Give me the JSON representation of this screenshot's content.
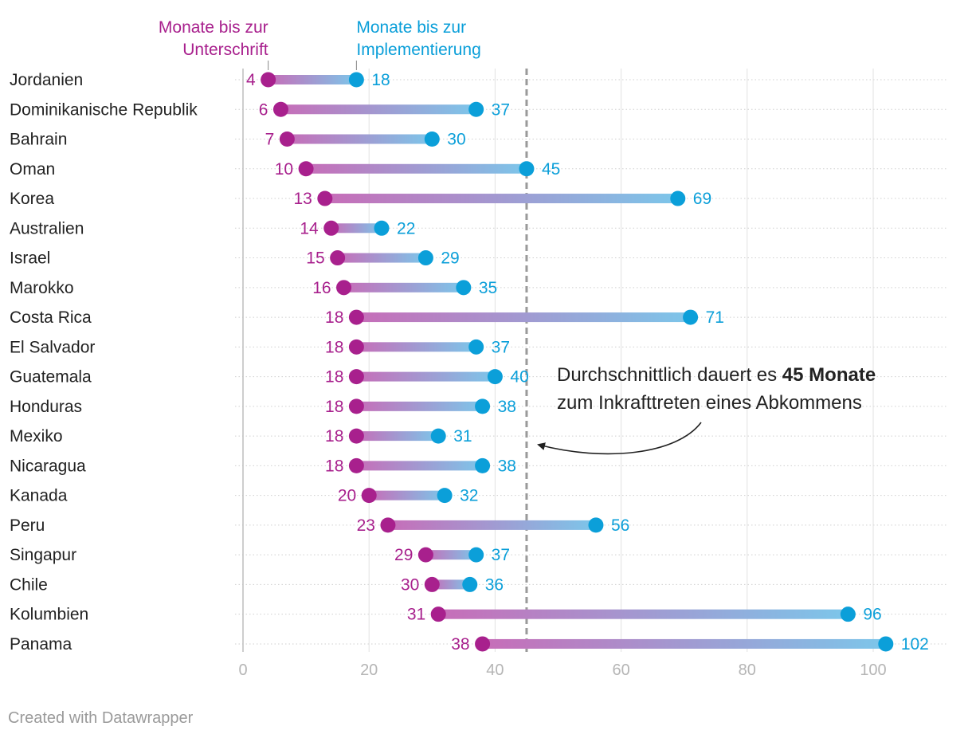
{
  "colors": {
    "signature": "#a8208d",
    "implementation": "#0b9fd9",
    "average_line": "#9a9a9a",
    "text": "#222222",
    "axis_text": "#b5b5b5",
    "grid": "#e2e2e2"
  },
  "chart_data": {
    "type": "dumbbell",
    "series": [
      {
        "name": "Monate bis zur Unterschrift",
        "label_lines": [
          "Monate bis zur",
          "Unterschrift"
        ]
      },
      {
        "name": "Monate bis zur Implementierung",
        "label_lines": [
          "Monate bis zur",
          "Implementierung"
        ]
      }
    ],
    "rows": [
      {
        "country": "Jordanien",
        "signature": 4,
        "implementation": 18
      },
      {
        "country": "Dominikanische Republik",
        "signature": 6,
        "implementation": 37
      },
      {
        "country": "Bahrain",
        "signature": 7,
        "implementation": 30
      },
      {
        "country": "Oman",
        "signature": 10,
        "implementation": 45
      },
      {
        "country": "Korea",
        "signature": 13,
        "implementation": 69
      },
      {
        "country": "Australien",
        "signature": 14,
        "implementation": 22
      },
      {
        "country": "Israel",
        "signature": 15,
        "implementation": 29
      },
      {
        "country": "Marokko",
        "signature": 16,
        "implementation": 35
      },
      {
        "country": "Costa Rica",
        "signature": 18,
        "implementation": 71
      },
      {
        "country": "El Salvador",
        "signature": 18,
        "implementation": 37
      },
      {
        "country": "Guatemala",
        "signature": 18,
        "implementation": 40
      },
      {
        "country": "Honduras",
        "signature": 18,
        "implementation": 38
      },
      {
        "country": "Mexiko",
        "signature": 18,
        "implementation": 31
      },
      {
        "country": "Nicaragua",
        "signature": 18,
        "implementation": 38
      },
      {
        "country": "Kanada",
        "signature": 20,
        "implementation": 32
      },
      {
        "country": "Peru",
        "signature": 23,
        "implementation": 56
      },
      {
        "country": "Singapur",
        "signature": 29,
        "implementation": 37
      },
      {
        "country": "Chile",
        "signature": 30,
        "implementation": 36
      },
      {
        "country": "Kolumbien",
        "signature": 31,
        "implementation": 96
      },
      {
        "country": "Panama",
        "signature": 38,
        "implementation": 102
      }
    ],
    "xlim": [
      0,
      110
    ],
    "xticks": [
      0,
      20,
      40,
      60,
      80,
      100
    ],
    "average": 45,
    "annotation": {
      "line1": "Durchschnittlich dauert es ",
      "line1_bold": "45 Monate",
      "line2": "zum Inkrafttreten eines Abkommens"
    }
  },
  "footer": "Created with Datawrapper"
}
